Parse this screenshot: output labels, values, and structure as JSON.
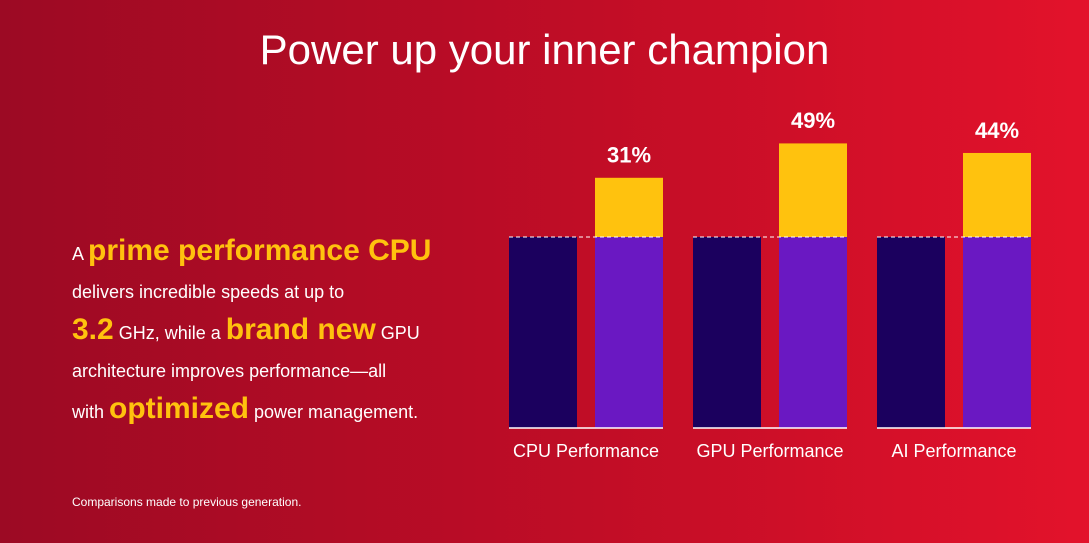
{
  "title": "Power up your inner champion",
  "description": [
    "A ",
    "prime performance CPU",
    "delivers incredible speeds at up to",
    "3.2",
    " GHz, while a ",
    "brand new",
    " GPU",
    "architecture improves performance—all",
    "with ",
    "optimized",
    " power management."
  ],
  "footnote": "Comparisons made to previous generation.",
  "chart_data": {
    "type": "bar",
    "categories": [
      "CPU Performance",
      "GPU Performance",
      "AI Performance"
    ],
    "series": [
      {
        "color": "#1b005e",
        "values": [
          100,
          100,
          100
        ]
      },
      {
        "color": "#6a18c2",
        "values": [
          100,
          100,
          100
        ]
      },
      {
        "color": "#ffc20e",
        "values": [
          31,
          49,
          44
        ],
        "value_labels": [
          "31%",
          "49%",
          "44%"
        ]
      }
    ]
  }
}
